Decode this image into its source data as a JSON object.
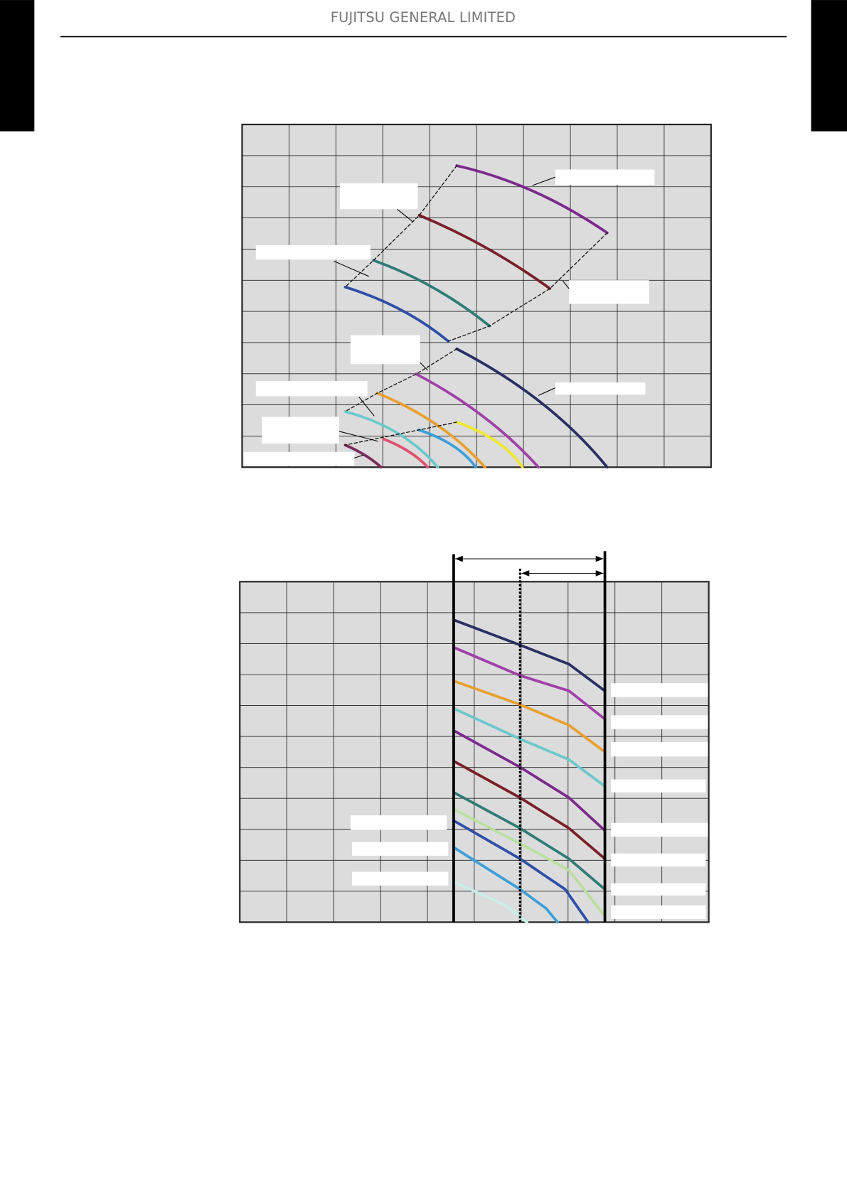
{
  "header": {
    "title": "FUJITSU GENERAL LIMITED"
  }
}
